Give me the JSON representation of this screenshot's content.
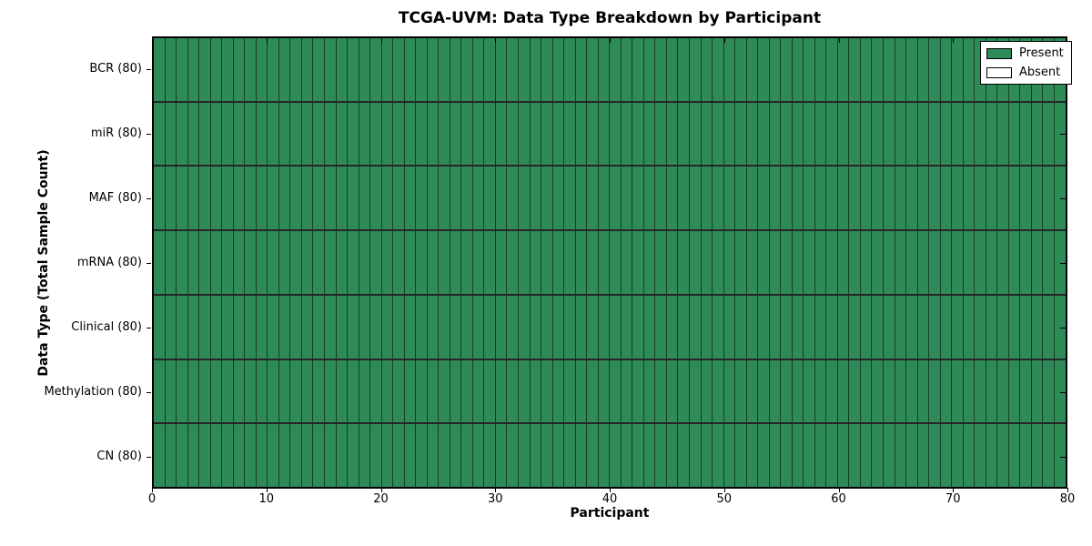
{
  "chart_data": {
    "type": "heatmap",
    "title": "TCGA-UVM: Data Type Breakdown by Participant",
    "xlabel": "Participant",
    "ylabel": "Data Type (Total Sample Count)",
    "n_participants": 80,
    "x_ticks": [
      0,
      10,
      20,
      30,
      40,
      50,
      60,
      70,
      80
    ],
    "xlim": [
      0,
      80
    ],
    "grid": "cell-borders",
    "legend_position": "upper-right-inside",
    "rows": [
      {
        "label": "BCR (80)",
        "name": "BCR",
        "total": 80,
        "present": 80,
        "absent": 0
      },
      {
        "label": "miR (80)",
        "name": "miR",
        "total": 80,
        "present": 80,
        "absent": 0
      },
      {
        "label": "MAF (80)",
        "name": "MAF",
        "total": 80,
        "present": 80,
        "absent": 0
      },
      {
        "label": "mRNA (80)",
        "name": "mRNA",
        "total": 80,
        "present": 80,
        "absent": 0
      },
      {
        "label": "Clinical (80)",
        "name": "Clinical",
        "total": 80,
        "present": 80,
        "absent": 0
      },
      {
        "label": "Methylation (80)",
        "name": "Methylation",
        "total": 80,
        "present": 80,
        "absent": 0
      },
      {
        "label": "CN (80)",
        "name": "CN",
        "total": 80,
        "present": 80,
        "absent": 0
      }
    ],
    "colors": {
      "present": "#2e8b57",
      "absent": "#ffffff",
      "cell_border": "rgba(0,0,0,0.55)",
      "row_border": "rgba(0,0,0,0.85)",
      "spine": "#000000"
    },
    "legend": [
      {
        "label": "Present",
        "color": "#2e8b57"
      },
      {
        "label": "Absent",
        "color": "#ffffff"
      }
    ]
  }
}
